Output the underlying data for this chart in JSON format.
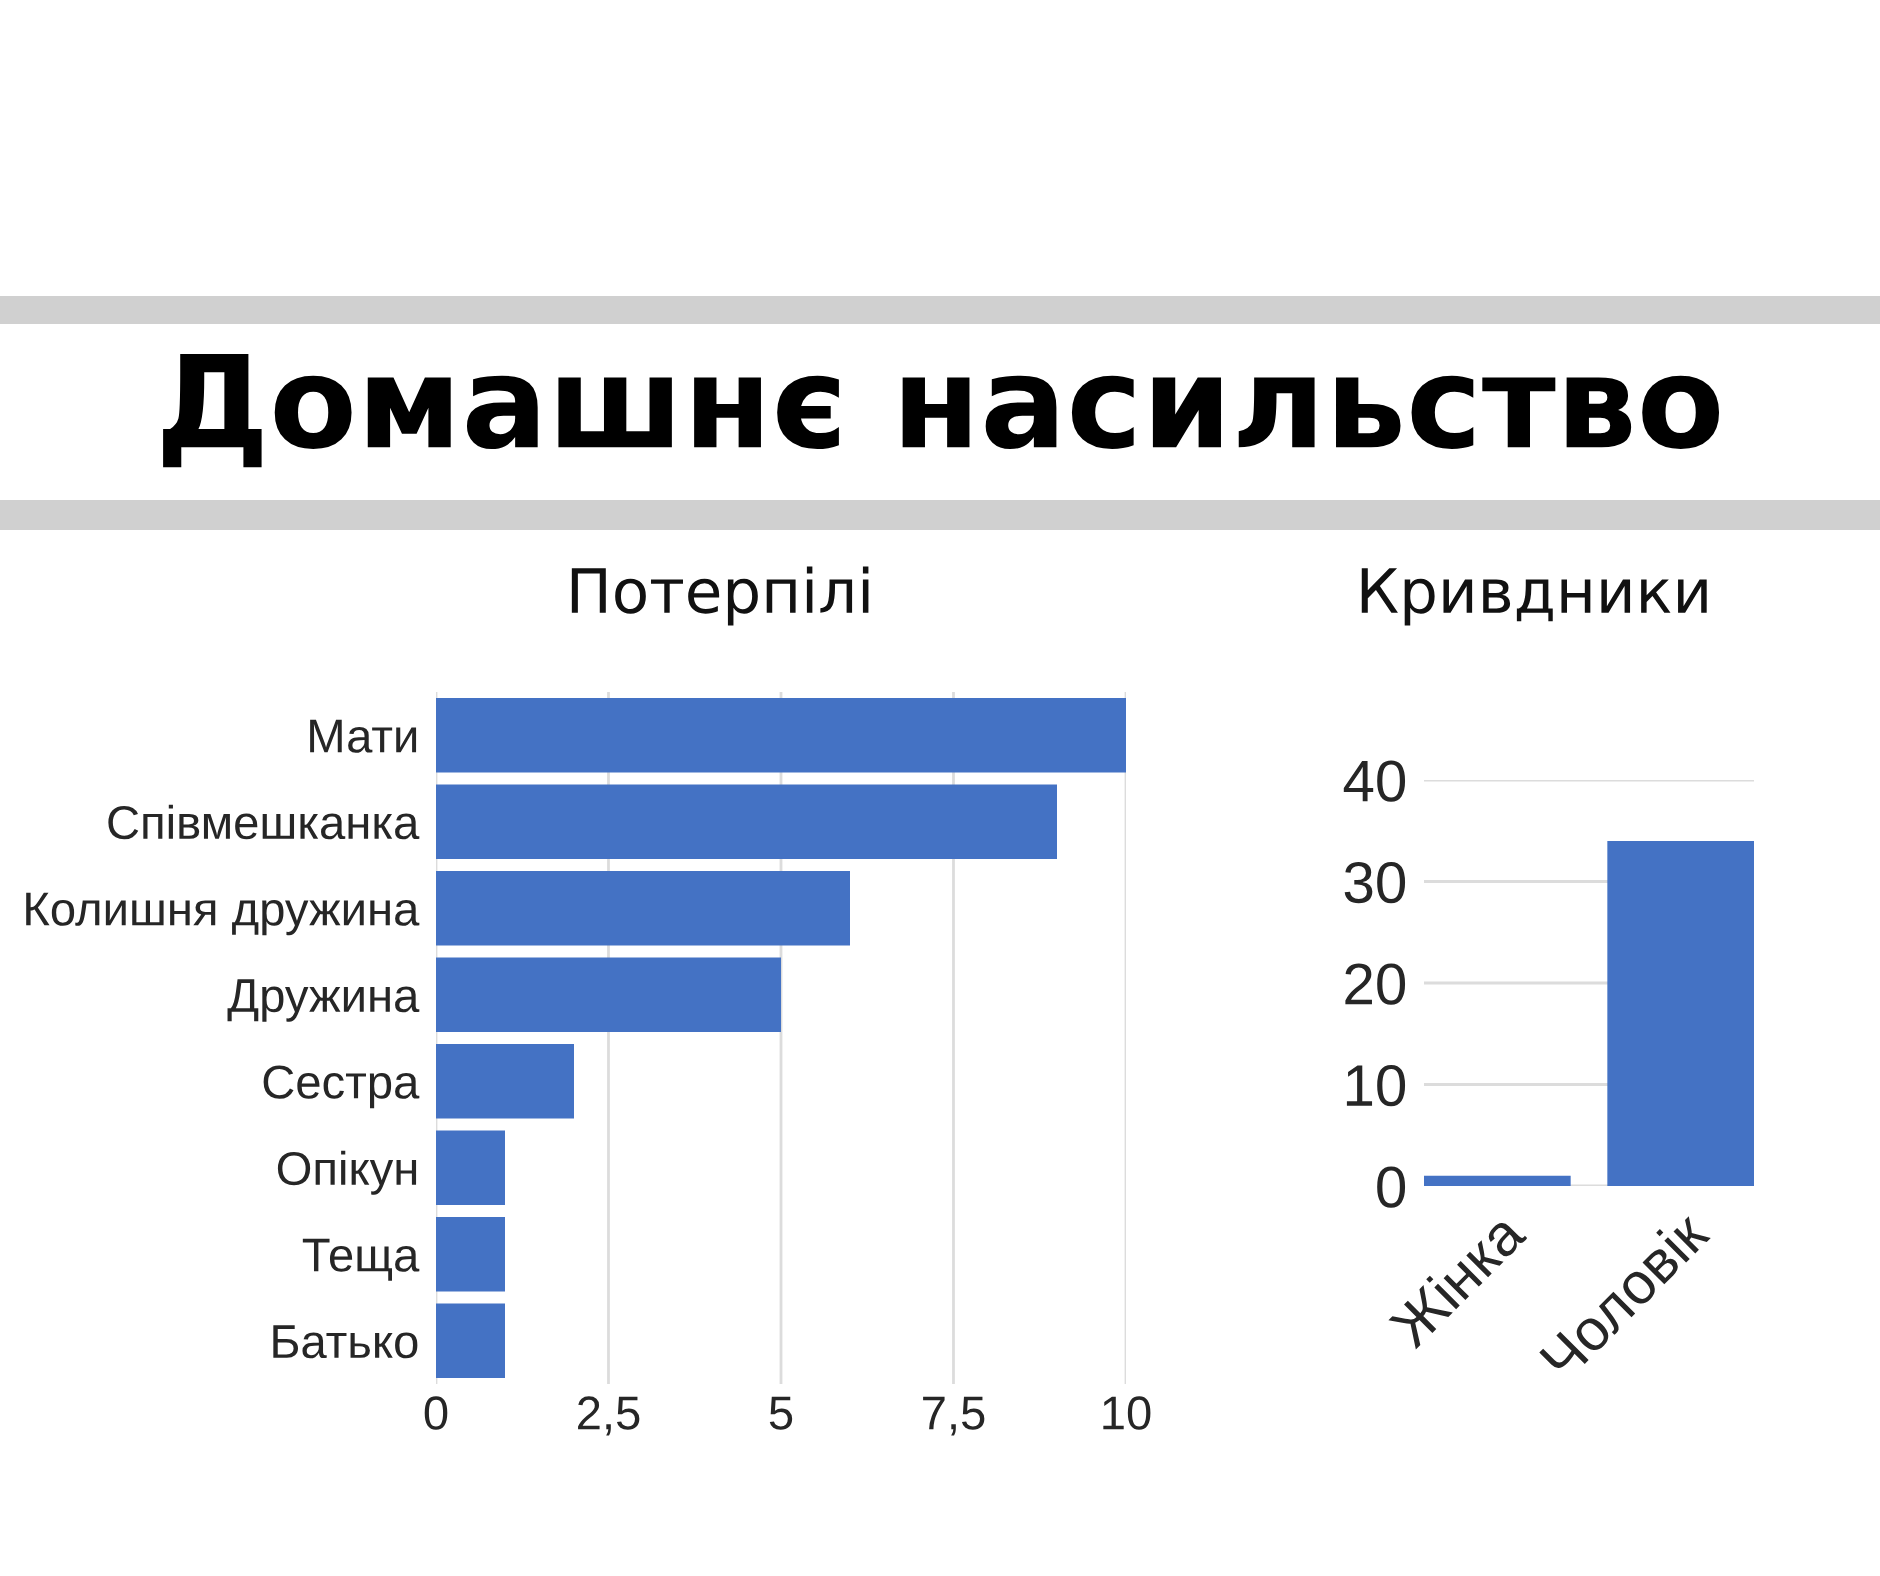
{
  "chart_data": [
    {
      "type": "other",
      "title": "Домашнє насильство"
    },
    {
      "type": "bar",
      "title": "Потерпілі",
      "orientation": "horizontal",
      "categories": [
        "Мати",
        "Співмешканка",
        "Колишня дружина",
        "Дружина",
        "Сестра",
        "Опікун",
        "Теща",
        "Батько"
      ],
      "values": [
        10,
        9,
        6,
        5,
        2,
        1,
        1,
        1
      ],
      "color": "#4472c4",
      "xlim": [
        0,
        10
      ],
      "xticks": [
        0,
        {
          "value": 2.5,
          "label": "2,5"
        },
        5,
        {
          "value": 7.5,
          "label": "7,5"
        },
        10
      ],
      "grid": "x"
    },
    {
      "type": "bar",
      "title": "Кривдники",
      "categories": [
        "Жінка",
        "Чоловік"
      ],
      "values": [
        1,
        34
      ],
      "color": "#4472c4",
      "ylim": [
        0,
        40
      ],
      "yticks": [
        0,
        10,
        20,
        30,
        40
      ],
      "grid": "y"
    }
  ]
}
